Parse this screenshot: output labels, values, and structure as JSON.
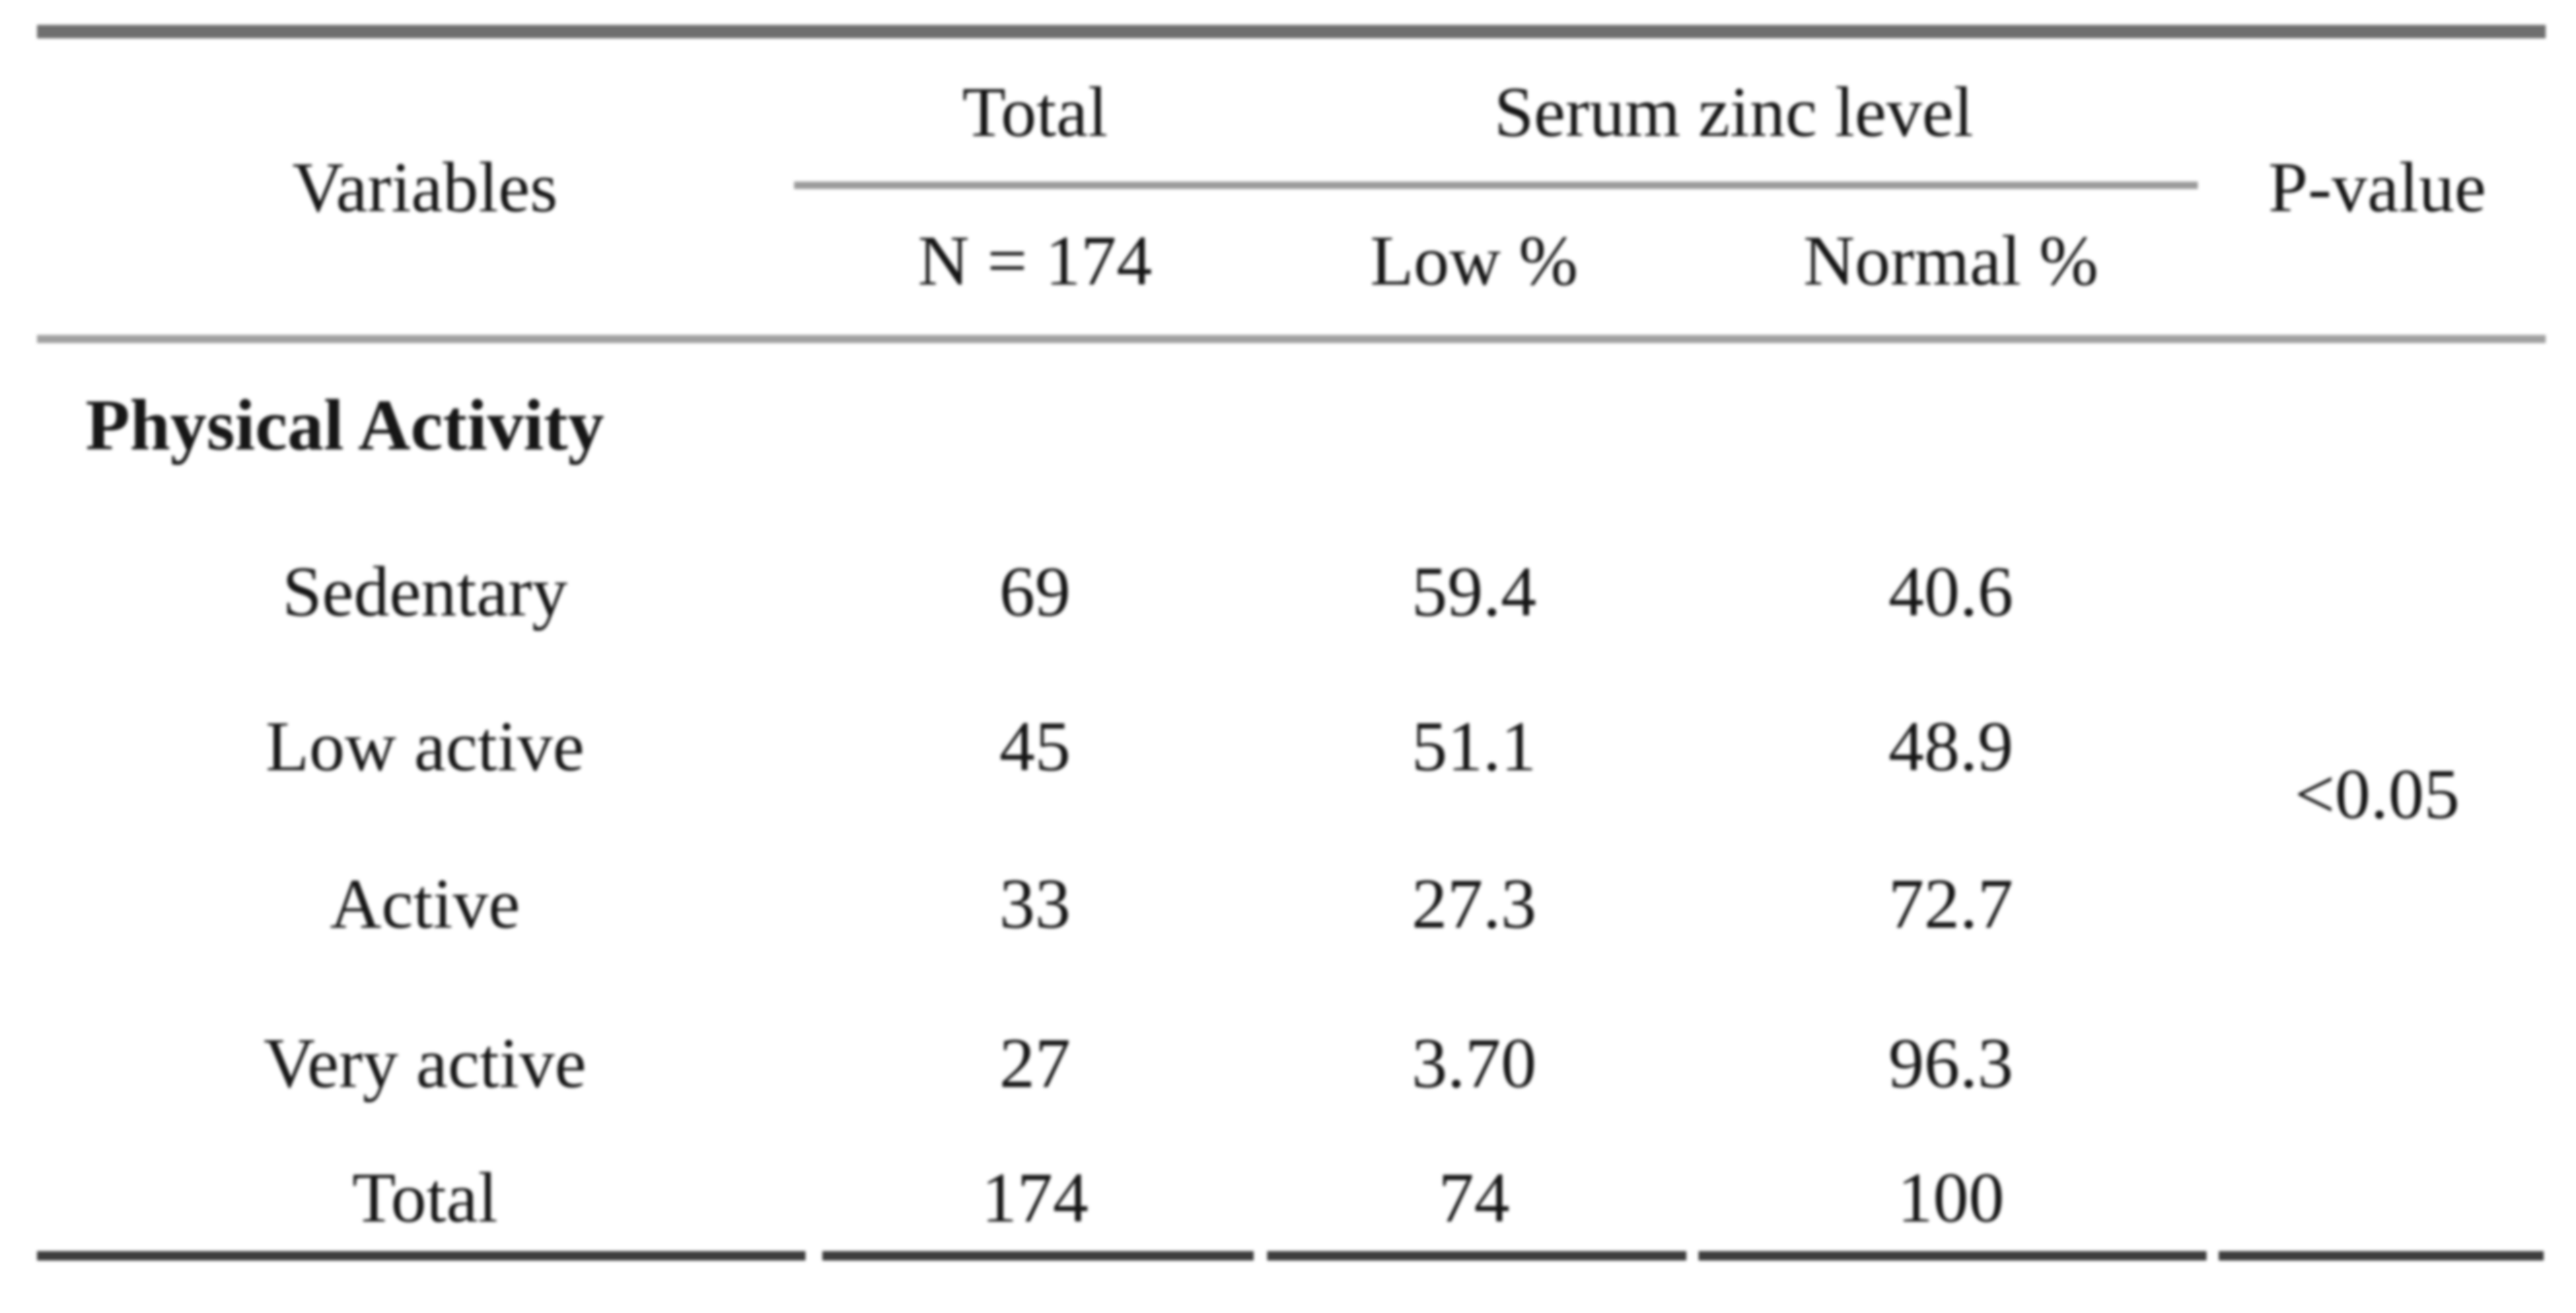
{
  "colors": {
    "background": "#ffffff",
    "text": "#161616",
    "rule_top_gray": "#6f6f6f",
    "rule_light_gray": "#a0a0a0",
    "rule_bottom_dark": "#3d3d3d"
  },
  "table": {
    "header": {
      "variables": "Variables",
      "total_group": "Total",
      "total_sub": "N = 174",
      "serum_group": "Serum zinc level",
      "serum_sub_low": "Low %",
      "serum_sub_normal": "Normal %",
      "p_value": "P-value"
    },
    "section_label": "Physical Activity",
    "rows": [
      {
        "label": "Sedentary",
        "n": "69",
        "low": "59.4",
        "normal": "40.6"
      },
      {
        "label": "Low active",
        "n": "45",
        "low": "51.1",
        "normal": "48.9"
      },
      {
        "label": "Active",
        "n": "33",
        "low": "27.3",
        "normal": "72.7"
      },
      {
        "label": "Very active",
        "n": "27",
        "low": "3.70",
        "normal": "96.3"
      },
      {
        "label": "Total",
        "n": "174",
        "low": "74",
        "normal": "100"
      }
    ],
    "p_value": "<0.05"
  }
}
